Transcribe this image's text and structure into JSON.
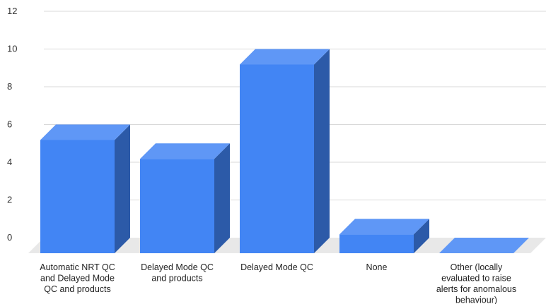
{
  "chart_data": {
    "type": "bar",
    "style": "3d-column",
    "categories": [
      [
        "Automatic NRT QC",
        "and Delayed Mode",
        "QC and products"
      ],
      [
        "Delayed Mode QC",
        "and products"
      ],
      [
        "Delayed Mode QC"
      ],
      [
        "None"
      ],
      [
        "Other (locally",
        "evaluated to raise",
        "alerts for anomalous",
        "behaviour)"
      ]
    ],
    "values": [
      6,
      5,
      10,
      1,
      0
    ],
    "ylim": [
      0,
      12
    ],
    "yticks": [
      "0",
      "2",
      "4",
      "6",
      "8",
      "10",
      "12"
    ],
    "grid": true,
    "legend": "none",
    "colors": {
      "front": "#4285f4",
      "top": "#5f97f6",
      "side": "#2c5aa8",
      "floor": "#e8e8e8",
      "grid": "#d9d9d9"
    }
  }
}
